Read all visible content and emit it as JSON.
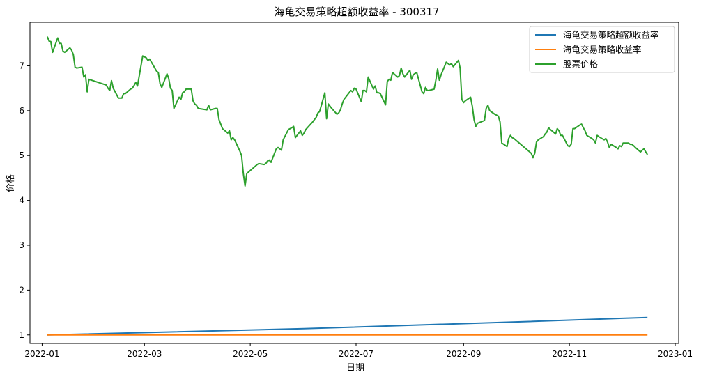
{
  "chart_data": {
    "type": "line",
    "title": "海龟交易策略超额收益率 - 300317",
    "xlabel": "日期",
    "ylabel": "价格",
    "xlim": [
      "2021-12-25",
      "2023-01-03"
    ],
    "ylim": [
      0.81,
      7.97
    ],
    "x_ticks": [
      "2022-01",
      "2022-03",
      "2022-05",
      "2022-07",
      "2022-09",
      "2022-11",
      "2023-01"
    ],
    "y_ticks": [
      1,
      2,
      3,
      4,
      5,
      6,
      7
    ],
    "grid": false,
    "legend_position": "top-right",
    "series": [
      {
        "name": "海龟交易策略超额收益率",
        "color": "#1f77b4",
        "points": [
          [
            "2022-01-04",
            1.0
          ],
          [
            "2022-06-01",
            1.14
          ],
          [
            "2022-10-01",
            1.29
          ],
          [
            "2022-12-16",
            1.39
          ]
        ]
      },
      {
        "name": "海龟交易策略收益率",
        "color": "#ff7f0e",
        "points": [
          [
            "2022-01-04",
            1.0
          ],
          [
            "2022-12-16",
            1.0
          ]
        ]
      },
      {
        "name": "股票价格",
        "color": "#2ca02c",
        "points": [
          [
            "2022-01-04",
            7.65
          ],
          [
            "2022-01-05",
            7.55
          ],
          [
            "2022-01-06",
            7.54
          ],
          [
            "2022-01-07",
            7.3
          ],
          [
            "2022-01-10",
            7.62
          ],
          [
            "2022-01-11",
            7.5
          ],
          [
            "2022-01-12",
            7.5
          ],
          [
            "2022-01-13",
            7.33
          ],
          [
            "2022-01-14",
            7.3
          ],
          [
            "2022-01-17",
            7.4
          ],
          [
            "2022-01-18",
            7.35
          ],
          [
            "2022-01-19",
            7.25
          ],
          [
            "2022-01-20",
            6.97
          ],
          [
            "2022-01-21",
            6.95
          ],
          [
            "2022-01-24",
            6.97
          ],
          [
            "2022-01-25",
            6.75
          ],
          [
            "2022-01-26",
            6.8
          ],
          [
            "2022-01-27",
            6.42
          ],
          [
            "2022-01-28",
            6.7
          ],
          [
            "2022-02-07",
            6.57
          ],
          [
            "2022-02-08",
            6.5
          ],
          [
            "2022-02-09",
            6.45
          ],
          [
            "2022-02-10",
            6.67
          ],
          [
            "2022-02-11",
            6.5
          ],
          [
            "2022-02-14",
            6.28
          ],
          [
            "2022-02-15",
            6.28
          ],
          [
            "2022-02-16",
            6.28
          ],
          [
            "2022-02-17",
            6.38
          ],
          [
            "2022-02-18",
            6.38
          ],
          [
            "2022-02-21",
            6.48
          ],
          [
            "2022-02-22",
            6.5
          ],
          [
            "2022-02-23",
            6.56
          ],
          [
            "2022-02-24",
            6.63
          ],
          [
            "2022-02-25",
            6.55
          ],
          [
            "2022-02-28",
            7.22
          ],
          [
            "2022-03-01",
            7.2
          ],
          [
            "2022-03-02",
            7.18
          ],
          [
            "2022-03-03",
            7.12
          ],
          [
            "2022-03-04",
            7.15
          ],
          [
            "2022-03-07",
            6.95
          ],
          [
            "2022-03-08",
            6.88
          ],
          [
            "2022-03-09",
            6.85
          ],
          [
            "2022-03-10",
            6.6
          ],
          [
            "2022-03-11",
            6.52
          ],
          [
            "2022-03-14",
            6.82
          ],
          [
            "2022-03-15",
            6.72
          ],
          [
            "2022-03-16",
            6.5
          ],
          [
            "2022-03-17",
            6.45
          ],
          [
            "2022-03-18",
            6.05
          ],
          [
            "2022-03-21",
            6.3
          ],
          [
            "2022-03-22",
            6.25
          ],
          [
            "2022-03-23",
            6.4
          ],
          [
            "2022-03-24",
            6.42
          ],
          [
            "2022-03-25",
            6.48
          ],
          [
            "2022-03-28",
            6.48
          ],
          [
            "2022-03-29",
            6.22
          ],
          [
            "2022-03-30",
            6.15
          ],
          [
            "2022-03-31",
            6.12
          ],
          [
            "2022-04-01",
            6.05
          ],
          [
            "2022-04-06",
            6.02
          ],
          [
            "2022-04-07",
            6.12
          ],
          [
            "2022-04-08",
            6.02
          ],
          [
            "2022-04-11",
            6.05
          ],
          [
            "2022-04-12",
            6.05
          ],
          [
            "2022-04-13",
            5.8
          ],
          [
            "2022-04-14",
            5.7
          ],
          [
            "2022-04-15",
            5.6
          ],
          [
            "2022-04-18",
            5.5
          ],
          [
            "2022-04-19",
            5.55
          ],
          [
            "2022-04-20",
            5.35
          ],
          [
            "2022-04-21",
            5.4
          ],
          [
            "2022-04-22",
            5.35
          ],
          [
            "2022-04-25",
            5.1
          ],
          [
            "2022-04-26",
            5.0
          ],
          [
            "2022-04-27",
            4.6
          ],
          [
            "2022-04-28",
            4.32
          ],
          [
            "2022-04-29",
            4.6
          ],
          [
            "2022-05-05",
            4.8
          ],
          [
            "2022-05-06",
            4.82
          ],
          [
            "2022-05-09",
            4.8
          ],
          [
            "2022-05-10",
            4.82
          ],
          [
            "2022-05-11",
            4.88
          ],
          [
            "2022-05-12",
            4.9
          ],
          [
            "2022-05-13",
            4.85
          ],
          [
            "2022-05-16",
            5.15
          ],
          [
            "2022-05-17",
            5.18
          ],
          [
            "2022-05-18",
            5.15
          ],
          [
            "2022-05-19",
            5.12
          ],
          [
            "2022-05-20",
            5.35
          ],
          [
            "2022-05-23",
            5.58
          ],
          [
            "2022-05-24",
            5.6
          ],
          [
            "2022-05-25",
            5.62
          ],
          [
            "2022-05-26",
            5.65
          ],
          [
            "2022-05-27",
            5.4
          ],
          [
            "2022-05-30",
            5.55
          ],
          [
            "2022-05-31",
            5.45
          ],
          [
            "2022-06-01",
            5.5
          ],
          [
            "2022-06-02",
            5.58
          ],
          [
            "2022-06-06",
            5.75
          ],
          [
            "2022-06-07",
            5.8
          ],
          [
            "2022-06-08",
            5.85
          ],
          [
            "2022-06-09",
            5.95
          ],
          [
            "2022-06-10",
            5.98
          ],
          [
            "2022-06-13",
            6.4
          ],
          [
            "2022-06-14",
            5.82
          ],
          [
            "2022-06-15",
            6.15
          ],
          [
            "2022-06-16",
            6.1
          ],
          [
            "2022-06-17",
            6.05
          ],
          [
            "2022-06-20",
            5.92
          ],
          [
            "2022-06-21",
            5.95
          ],
          [
            "2022-06-22",
            6.02
          ],
          [
            "2022-06-23",
            6.15
          ],
          [
            "2022-06-24",
            6.25
          ],
          [
            "2022-06-27",
            6.4
          ],
          [
            "2022-06-28",
            6.45
          ],
          [
            "2022-06-29",
            6.42
          ],
          [
            "2022-06-30",
            6.5
          ],
          [
            "2022-07-01",
            6.48
          ],
          [
            "2022-07-04",
            6.2
          ],
          [
            "2022-07-05",
            6.45
          ],
          [
            "2022-07-06",
            6.45
          ],
          [
            "2022-07-07",
            6.42
          ],
          [
            "2022-07-08",
            6.75
          ],
          [
            "2022-07-11",
            6.48
          ],
          [
            "2022-07-12",
            6.55
          ],
          [
            "2022-07-13",
            6.4
          ],
          [
            "2022-07-14",
            6.4
          ],
          [
            "2022-07-15",
            6.38
          ],
          [
            "2022-07-18",
            6.13
          ],
          [
            "2022-07-19",
            6.65
          ],
          [
            "2022-07-20",
            6.7
          ],
          [
            "2022-07-21",
            6.68
          ],
          [
            "2022-07-22",
            6.85
          ],
          [
            "2022-07-25",
            6.75
          ],
          [
            "2022-07-26",
            6.78
          ],
          [
            "2022-07-27",
            6.95
          ],
          [
            "2022-07-28",
            6.82
          ],
          [
            "2022-07-29",
            6.75
          ],
          [
            "2022-08-01",
            6.9
          ],
          [
            "2022-08-02",
            6.7
          ],
          [
            "2022-08-03",
            6.8
          ],
          [
            "2022-08-04",
            6.83
          ],
          [
            "2022-08-05",
            6.85
          ],
          [
            "2022-08-08",
            6.42
          ],
          [
            "2022-08-09",
            6.38
          ],
          [
            "2022-08-10",
            6.52
          ],
          [
            "2022-08-11",
            6.45
          ],
          [
            "2022-08-12",
            6.45
          ],
          [
            "2022-08-15",
            6.48
          ],
          [
            "2022-08-16",
            6.68
          ],
          [
            "2022-08-17",
            6.93
          ],
          [
            "2022-08-18",
            6.68
          ],
          [
            "2022-08-19",
            6.8
          ],
          [
            "2022-08-22",
            7.08
          ],
          [
            "2022-08-23",
            7.05
          ],
          [
            "2022-08-24",
            7.02
          ],
          [
            "2022-08-25",
            7.05
          ],
          [
            "2022-08-26",
            6.98
          ],
          [
            "2022-08-29",
            7.12
          ],
          [
            "2022-08-30",
            6.95
          ],
          [
            "2022-08-31",
            6.25
          ],
          [
            "2022-09-01",
            6.18
          ],
          [
            "2022-09-02",
            6.22
          ],
          [
            "2022-09-05",
            6.3
          ],
          [
            "2022-09-06",
            6.1
          ],
          [
            "2022-09-07",
            5.8
          ],
          [
            "2022-09-08",
            5.65
          ],
          [
            "2022-09-09",
            5.72
          ],
          [
            "2022-09-13",
            5.78
          ],
          [
            "2022-09-14",
            6.05
          ],
          [
            "2022-09-15",
            6.12
          ],
          [
            "2022-09-16",
            6.0
          ],
          [
            "2022-09-19",
            5.92
          ],
          [
            "2022-09-20",
            5.9
          ],
          [
            "2022-09-21",
            5.88
          ],
          [
            "2022-09-22",
            5.75
          ],
          [
            "2022-09-23",
            5.28
          ],
          [
            "2022-09-26",
            5.2
          ],
          [
            "2022-09-27",
            5.38
          ],
          [
            "2022-09-28",
            5.45
          ],
          [
            "2022-09-29",
            5.4
          ],
          [
            "2022-09-30",
            5.38
          ],
          [
            "2022-10-10",
            5.05
          ],
          [
            "2022-10-11",
            4.95
          ],
          [
            "2022-10-12",
            5.05
          ],
          [
            "2022-10-13",
            5.3
          ],
          [
            "2022-10-14",
            5.35
          ],
          [
            "2022-10-17",
            5.42
          ],
          [
            "2022-10-18",
            5.48
          ],
          [
            "2022-10-19",
            5.52
          ],
          [
            "2022-10-20",
            5.62
          ],
          [
            "2022-10-21",
            5.58
          ],
          [
            "2022-10-24",
            5.48
          ],
          [
            "2022-10-25",
            5.6
          ],
          [
            "2022-10-26",
            5.55
          ],
          [
            "2022-10-27",
            5.45
          ],
          [
            "2022-10-28",
            5.45
          ],
          [
            "2022-10-31",
            5.22
          ],
          [
            "2022-11-01",
            5.2
          ],
          [
            "2022-11-02",
            5.25
          ],
          [
            "2022-11-03",
            5.6
          ],
          [
            "2022-11-04",
            5.6
          ],
          [
            "2022-11-07",
            5.68
          ],
          [
            "2022-11-08",
            5.7
          ],
          [
            "2022-11-09",
            5.62
          ],
          [
            "2022-11-10",
            5.55
          ],
          [
            "2022-11-11",
            5.45
          ],
          [
            "2022-11-14",
            5.38
          ],
          [
            "2022-11-15",
            5.35
          ],
          [
            "2022-11-16",
            5.28
          ],
          [
            "2022-11-17",
            5.45
          ],
          [
            "2022-11-18",
            5.42
          ],
          [
            "2022-11-21",
            5.35
          ],
          [
            "2022-11-22",
            5.38
          ],
          [
            "2022-11-23",
            5.3
          ],
          [
            "2022-11-24",
            5.18
          ],
          [
            "2022-11-25",
            5.25
          ],
          [
            "2022-11-28",
            5.18
          ],
          [
            "2022-11-29",
            5.15
          ],
          [
            "2022-11-30",
            5.22
          ],
          [
            "2022-12-01",
            5.2
          ],
          [
            "2022-12-02",
            5.28
          ],
          [
            "2022-12-05",
            5.28
          ],
          [
            "2022-12-06",
            5.25
          ],
          [
            "2022-12-07",
            5.25
          ],
          [
            "2022-12-08",
            5.22
          ],
          [
            "2022-12-09",
            5.18
          ],
          [
            "2022-12-12",
            5.08
          ],
          [
            "2022-12-13",
            5.12
          ],
          [
            "2022-12-14",
            5.15
          ],
          [
            "2022-12-15",
            5.08
          ],
          [
            "2022-12-16",
            5.02
          ]
        ]
      }
    ]
  }
}
